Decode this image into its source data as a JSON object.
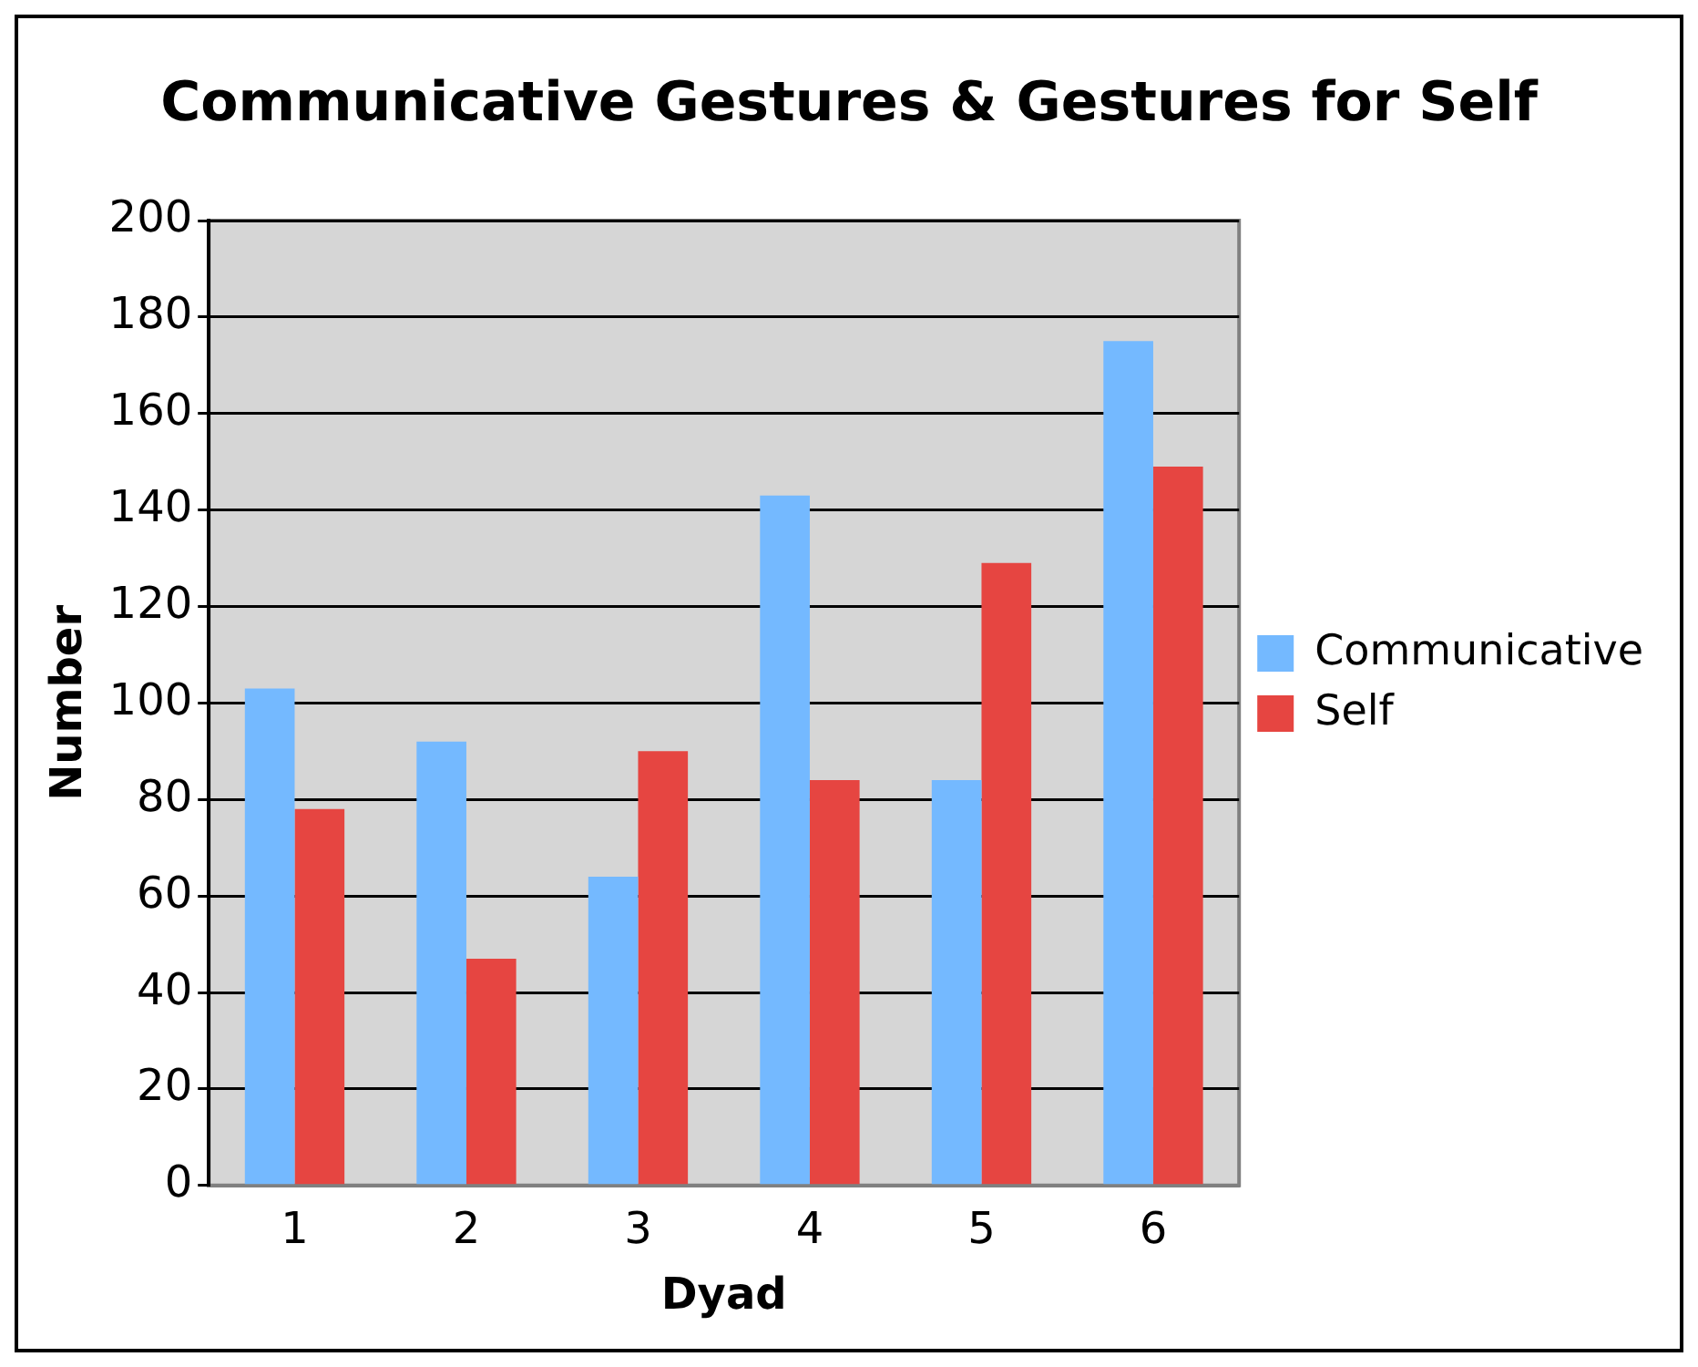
{
  "chart_data": {
    "type": "bar",
    "title": "Communicative Gestures & Gestures for Self",
    "xlabel": "Dyad",
    "ylabel": "Number",
    "categories": [
      "1",
      "2",
      "3",
      "4",
      "5",
      "6"
    ],
    "series": [
      {
        "name": "Communicative",
        "color": "#74b9ff",
        "values": [
          103,
          92,
          64,
          143,
          84,
          175
        ]
      },
      {
        "name": "Self",
        "color": "#e64541",
        "values": [
          78,
          47,
          90,
          84,
          129,
          149
        ]
      }
    ],
    "ylim": [
      0,
      200
    ],
    "yticks": [
      0,
      20,
      40,
      60,
      80,
      100,
      120,
      140,
      160,
      180,
      200
    ],
    "grid": "y",
    "legend": "right"
  }
}
